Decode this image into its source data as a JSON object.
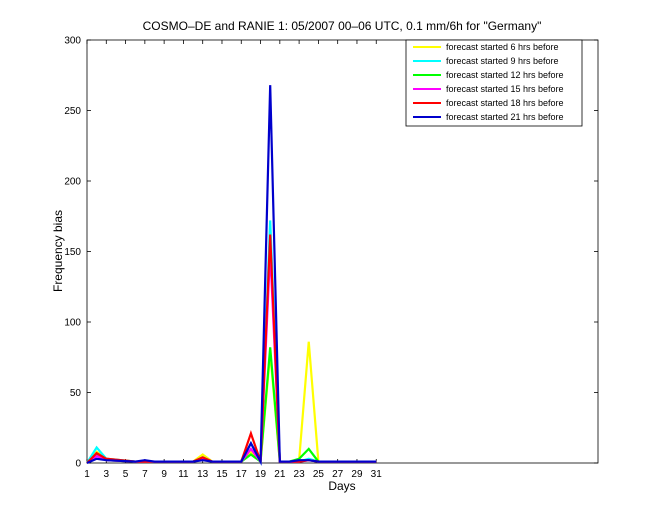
{
  "chart_data": {
    "type": "line",
    "title": "COSMO–DE and RANIE 1: 05/2007 00–06 UTC, 0.1 mm/6h for \"Germany\"",
    "xlabel": "Days",
    "ylabel": "Frequency bias",
    "xlim": [
      1,
      54
    ],
    "ylim": [
      0,
      300
    ],
    "xticks": [
      1,
      3,
      5,
      7,
      9,
      11,
      13,
      15,
      17,
      19,
      21,
      23,
      25,
      27,
      29,
      31
    ],
    "yticks": [
      0,
      50,
      100,
      150,
      200,
      250,
      300
    ],
    "grid": false,
    "legend_position": "top-right",
    "series": [
      {
        "name": "forecast started 6 hrs before",
        "color": "#ffff00",
        "x": [
          1,
          2,
          3,
          6,
          7,
          8,
          9,
          10,
          11,
          12,
          13,
          14,
          15,
          16,
          17,
          18,
          19,
          20,
          21,
          22,
          23,
          24,
          25,
          26,
          27,
          28,
          29,
          30,
          31
        ],
        "y": [
          0,
          8,
          3,
          1,
          1,
          1,
          1,
          1,
          1,
          1,
          6,
          1,
          1,
          1,
          1,
          8,
          1,
          78,
          1,
          1,
          2,
          86,
          1,
          1,
          1,
          1,
          1,
          1,
          1
        ]
      },
      {
        "name": "forecast started 9 hrs before",
        "color": "#00ffff",
        "x": [
          1,
          2,
          3,
          6,
          7,
          8,
          9,
          10,
          11,
          12,
          13,
          14,
          15,
          16,
          17,
          18,
          19,
          20,
          21,
          22,
          23,
          24,
          25,
          26,
          27,
          28,
          29,
          30,
          31
        ],
        "y": [
          0,
          11,
          3,
          1,
          1,
          1,
          1,
          1,
          1,
          1,
          4,
          1,
          1,
          1,
          1,
          14,
          1,
          172,
          1,
          1,
          1,
          3,
          1,
          1,
          1,
          1,
          1,
          1,
          1
        ]
      },
      {
        "name": "forecast started 12 hrs before",
        "color": "#00ff00",
        "x": [
          1,
          2,
          3,
          6,
          7,
          8,
          9,
          10,
          11,
          12,
          13,
          14,
          15,
          16,
          17,
          18,
          19,
          20,
          21,
          22,
          23,
          24,
          25,
          26,
          27,
          28,
          29,
          30,
          31
        ],
        "y": [
          0,
          6,
          2,
          1,
          1,
          1,
          1,
          1,
          1,
          1,
          3,
          1,
          1,
          1,
          1,
          6,
          1,
          82,
          1,
          1,
          3,
          10,
          1,
          1,
          1,
          1,
          1,
          1,
          1
        ]
      },
      {
        "name": "forecast started 15 hrs before",
        "color": "#ff00ff",
        "x": [
          1,
          2,
          3,
          6,
          7,
          8,
          9,
          10,
          11,
          12,
          13,
          14,
          15,
          16,
          17,
          18,
          19,
          20,
          21,
          22,
          23,
          24,
          25,
          26,
          27,
          28,
          29,
          30,
          31
        ],
        "y": [
          0,
          5,
          2,
          1,
          1,
          1,
          1,
          1,
          1,
          1,
          3,
          1,
          1,
          1,
          1,
          10,
          1,
          150,
          1,
          1,
          1,
          2,
          1,
          1,
          1,
          1,
          1,
          1,
          1
        ]
      },
      {
        "name": "forecast started 18 hrs before",
        "color": "#ff0000",
        "x": [
          1,
          2,
          3,
          6,
          7,
          8,
          9,
          10,
          11,
          12,
          13,
          14,
          15,
          16,
          17,
          18,
          19,
          20,
          21,
          22,
          23,
          24,
          25,
          26,
          27,
          28,
          29,
          30,
          31
        ],
        "y": [
          0,
          7,
          3,
          1,
          1,
          1,
          1,
          1,
          1,
          1,
          4,
          1,
          1,
          1,
          1,
          21,
          1,
          162,
          1,
          1,
          1,
          2,
          1,
          1,
          1,
          1,
          1,
          1,
          1
        ]
      },
      {
        "name": "forecast started 21 hrs before",
        "color": "#0000cc",
        "x": [
          1,
          2,
          3,
          6,
          7,
          8,
          9,
          10,
          11,
          12,
          13,
          14,
          15,
          16,
          17,
          18,
          19,
          20,
          21,
          22,
          23,
          24,
          25,
          26,
          27,
          28,
          29,
          30,
          31
        ],
        "y": [
          0,
          3,
          2,
          1,
          2,
          1,
          1,
          1,
          1,
          1,
          2,
          1,
          1,
          1,
          1,
          14,
          1,
          268,
          1,
          1,
          2,
          2,
          1,
          1,
          1,
          1,
          1,
          1,
          1
        ]
      }
    ]
  }
}
